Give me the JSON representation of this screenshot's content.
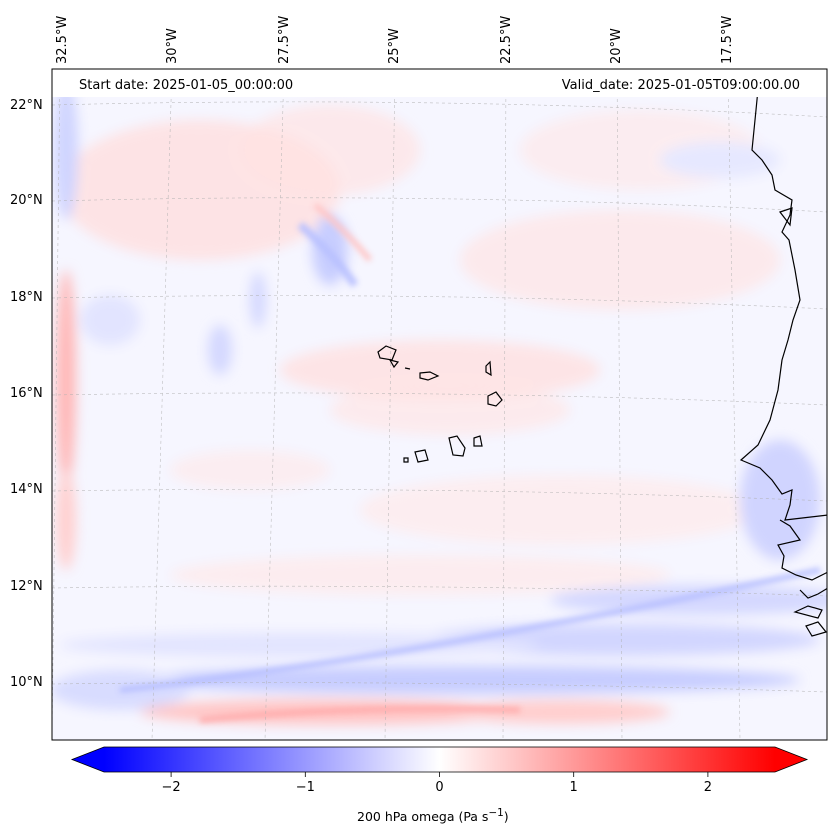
{
  "map": {
    "start_date_text": "Start date: 2025-01-05_00:00:00",
    "valid_date_text": "Valid_date: 2025-01-05T09:00:00.00",
    "lon_labels": [
      "32.5°W",
      "30°W",
      "27.5°W",
      "25°W",
      "22.5°W",
      "20°W",
      "17.5°W"
    ],
    "lat_labels": [
      "22°N",
      "20°N",
      "18°N",
      "16°N",
      "14°N",
      "12°N",
      "10°N"
    ],
    "colors": {
      "negative": "#0000ff",
      "zero": "#ffffff",
      "positive": "#ff0000",
      "coast": "#000000",
      "grid": "#b0b0b0"
    }
  },
  "colorbar": {
    "label_html": "200 hPa omega (Pa s<sup>−1</sup>)",
    "label_text": "200 hPa omega (Pa s−1)",
    "ticks": [
      "−2",
      "−1",
      "0",
      "1",
      "2"
    ],
    "tick_values": [
      -2,
      -1,
      0,
      1,
      2
    ],
    "vmin": -2.5,
    "vmax": 2.5,
    "levels": 50
  }
}
